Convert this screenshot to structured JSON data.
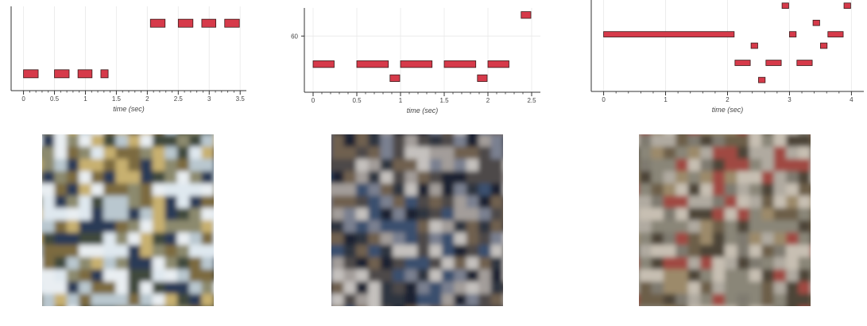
{
  "chart_data": [
    {
      "type": "piano-roll",
      "xlabel": "time (sec)",
      "xlim": [
        -0.2,
        3.6
      ],
      "ylim": [
        0,
        10
      ],
      "xticks": [
        0,
        0.5,
        1,
        1.5,
        2,
        2.5,
        3,
        3.5
      ],
      "xticklabels": [
        "0",
        "0.5",
        "1",
        "1.5",
        "2",
        "2.5",
        "3",
        "3.5"
      ],
      "yticks": [],
      "yticklabels": [],
      "grid": true,
      "bar_color": "#d63a4a",
      "notes": [
        {
          "start": 0.0,
          "end": 0.25,
          "pitch": 2
        },
        {
          "start": 0.5,
          "end": 0.75,
          "pitch": 2
        },
        {
          "start": 0.88,
          "end": 1.12,
          "pitch": 2
        },
        {
          "start": 1.25,
          "end": 1.38,
          "pitch": 2
        },
        {
          "start": 2.05,
          "end": 2.3,
          "pitch": 8
        },
        {
          "start": 2.5,
          "end": 2.75,
          "pitch": 8
        },
        {
          "start": 2.88,
          "end": 3.12,
          "pitch": 8
        },
        {
          "start": 3.25,
          "end": 3.5,
          "pitch": 8
        }
      ]
    },
    {
      "type": "piano-roll",
      "xlabel": "time (sec)",
      "xlim": [
        -0.1,
        2.6
      ],
      "ylim": [
        52,
        64
      ],
      "xticks": [
        0,
        0.5,
        1,
        1.5,
        2,
        2.5
      ],
      "xticklabels": [
        "0",
        "0.5",
        "1",
        "1.5",
        "2",
        "2.5"
      ],
      "yticks": [
        60
      ],
      "yticklabels": [
        "60"
      ],
      "grid": true,
      "bar_color": "#d63a4a",
      "notes": [
        {
          "start": 0.0,
          "end": 0.25,
          "pitch": 56
        },
        {
          "start": 0.5,
          "end": 0.87,
          "pitch": 56
        },
        {
          "start": 1.0,
          "end": 1.37,
          "pitch": 56
        },
        {
          "start": 1.5,
          "end": 1.87,
          "pitch": 56
        },
        {
          "start": 2.0,
          "end": 2.25,
          "pitch": 56
        },
        {
          "start": 0.88,
          "end": 1.0,
          "pitch": 54
        },
        {
          "start": 1.88,
          "end": 2.0,
          "pitch": 54
        },
        {
          "start": 2.38,
          "end": 2.5,
          "pitch": 63
        }
      ]
    },
    {
      "type": "piano-roll",
      "xlabel": "time (sec)",
      "xlim": [
        -0.2,
        4.2
      ],
      "ylim": [
        0,
        16
      ],
      "xticks": [
        0,
        1,
        2,
        3,
        4
      ],
      "xticklabels": [
        "0",
        "1",
        "2",
        "3",
        "4"
      ],
      "yticks": [],
      "yticklabels": [],
      "grid": true,
      "bar_color": "#d63a4a",
      "notes": [
        {
          "start": 0.0,
          "end": 2.12,
          "pitch": 10
        },
        {
          "start": 2.12,
          "end": 2.38,
          "pitch": 5
        },
        {
          "start": 2.38,
          "end": 2.5,
          "pitch": 8
        },
        {
          "start": 2.5,
          "end": 2.62,
          "pitch": 2
        },
        {
          "start": 2.62,
          "end": 2.88,
          "pitch": 5
        },
        {
          "start": 2.88,
          "end": 3.0,
          "pitch": 15
        },
        {
          "start": 3.0,
          "end": 3.12,
          "pitch": 10
        },
        {
          "start": 3.12,
          "end": 3.38,
          "pitch": 5
        },
        {
          "start": 3.38,
          "end": 3.5,
          "pitch": 12
        },
        {
          "start": 3.5,
          "end": 3.62,
          "pitch": 8
        },
        {
          "start": 3.62,
          "end": 3.88,
          "pitch": 10
        },
        {
          "start": 3.88,
          "end": 4.0,
          "pitch": 15
        }
      ]
    }
  ],
  "images": [
    {
      "name": "generated-image-1",
      "palette": [
        "#dfe8ef",
        "#b9c7cf",
        "#8c8a6e",
        "#3f4a3c",
        "#2c3a56",
        "#7c6a40",
        "#c7b070",
        "#e9eef2"
      ]
    },
    {
      "name": "generated-image-2",
      "palette": [
        "#4e4a48",
        "#2f3440",
        "#7a8090",
        "#a39d9a",
        "#1d2230",
        "#6f6050",
        "#c5c1be",
        "#3b4f6e"
      ]
    },
    {
      "name": "generated-image-3",
      "palette": [
        "#8a8678",
        "#b0aaa0",
        "#6d5e48",
        "#9c8a6a",
        "#4e4538",
        "#c7bfb2",
        "#7f7a70",
        "#a04a42"
      ]
    }
  ]
}
